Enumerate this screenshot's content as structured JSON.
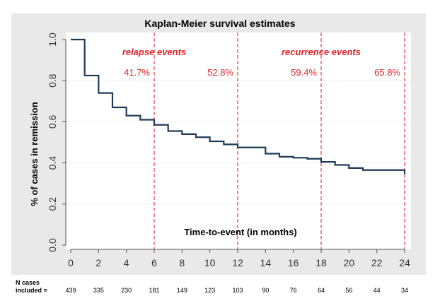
{
  "chart_data": {
    "type": "line",
    "title": "Kaplan-Meier survival estimates",
    "ylabel": "% of cases in remission",
    "xlabel": "Time-to-event (in months)",
    "xlim": [
      0,
      24
    ],
    "ylim": [
      0,
      1
    ],
    "x_ticks": [
      0,
      2,
      4,
      6,
      8,
      10,
      12,
      14,
      16,
      18,
      20,
      22,
      24
    ],
    "x_tick_labels": [
      "0",
      "2",
      "4",
      "6",
      "8",
      "10",
      "12",
      "14",
      "16",
      "18",
      "20",
      "22",
      "24"
    ],
    "y_ticks": [
      0,
      0.2,
      0.4,
      0.6,
      0.8,
      1.0
    ],
    "y_tick_labels": [
      "0.0",
      "0.2",
      "0.4",
      "0.6",
      "0.8",
      "1.0"
    ],
    "grid": "horizontal",
    "series": [
      {
        "style": "step",
        "color": "#1f3a57",
        "x": [
          0,
          1,
          2,
          3,
          4,
          5,
          6,
          7,
          8,
          9,
          10,
          11,
          12,
          13,
          14,
          15,
          16,
          17,
          18,
          19,
          20,
          21,
          22,
          23,
          24
        ],
        "y": [
          1.0,
          0.825,
          0.74,
          0.67,
          0.63,
          0.61,
          0.585,
          0.555,
          0.54,
          0.525,
          0.505,
          0.49,
          0.475,
          0.475,
          0.445,
          0.43,
          0.425,
          0.42,
          0.405,
          0.39,
          0.375,
          0.365,
          0.365,
          0.365,
          0.345
        ]
      }
    ],
    "vlines": [
      6,
      12,
      18,
      24
    ],
    "vline_color": "#e3262d",
    "region_labels": [
      {
        "text": "relapse events",
        "x": 6
      },
      {
        "text": "recurrence events",
        "x": 18
      }
    ],
    "percent_labels": [
      {
        "text": "41.7%",
        "x": 6
      },
      {
        "text": "52.8%",
        "x": 12
      },
      {
        "text": "59.4%",
        "x": 18
      },
      {
        "text": "65.8%",
        "x": 24
      }
    ],
    "n_cases_label_1": "N cases",
    "n_cases_label_2": "included =",
    "n_cases": [
      {
        "x": 0,
        "text": "439"
      },
      {
        "x": 2,
        "text": "335"
      },
      {
        "x": 4,
        "text": "230"
      },
      {
        "x": 6,
        "text": "181"
      },
      {
        "x": 8,
        "text": "149"
      },
      {
        "x": 10,
        "text": "123"
      },
      {
        "x": 12,
        "text": "103"
      },
      {
        "x": 14,
        "text": "90"
      },
      {
        "x": 16,
        "text": "76"
      },
      {
        "x": 18,
        "text": "64"
      },
      {
        "x": 20,
        "text": "56"
      },
      {
        "x": 22,
        "text": "44"
      },
      {
        "x": 24,
        "text": "34"
      }
    ],
    "background": "#e9e9e9",
    "plot_background": "#ffffff"
  }
}
